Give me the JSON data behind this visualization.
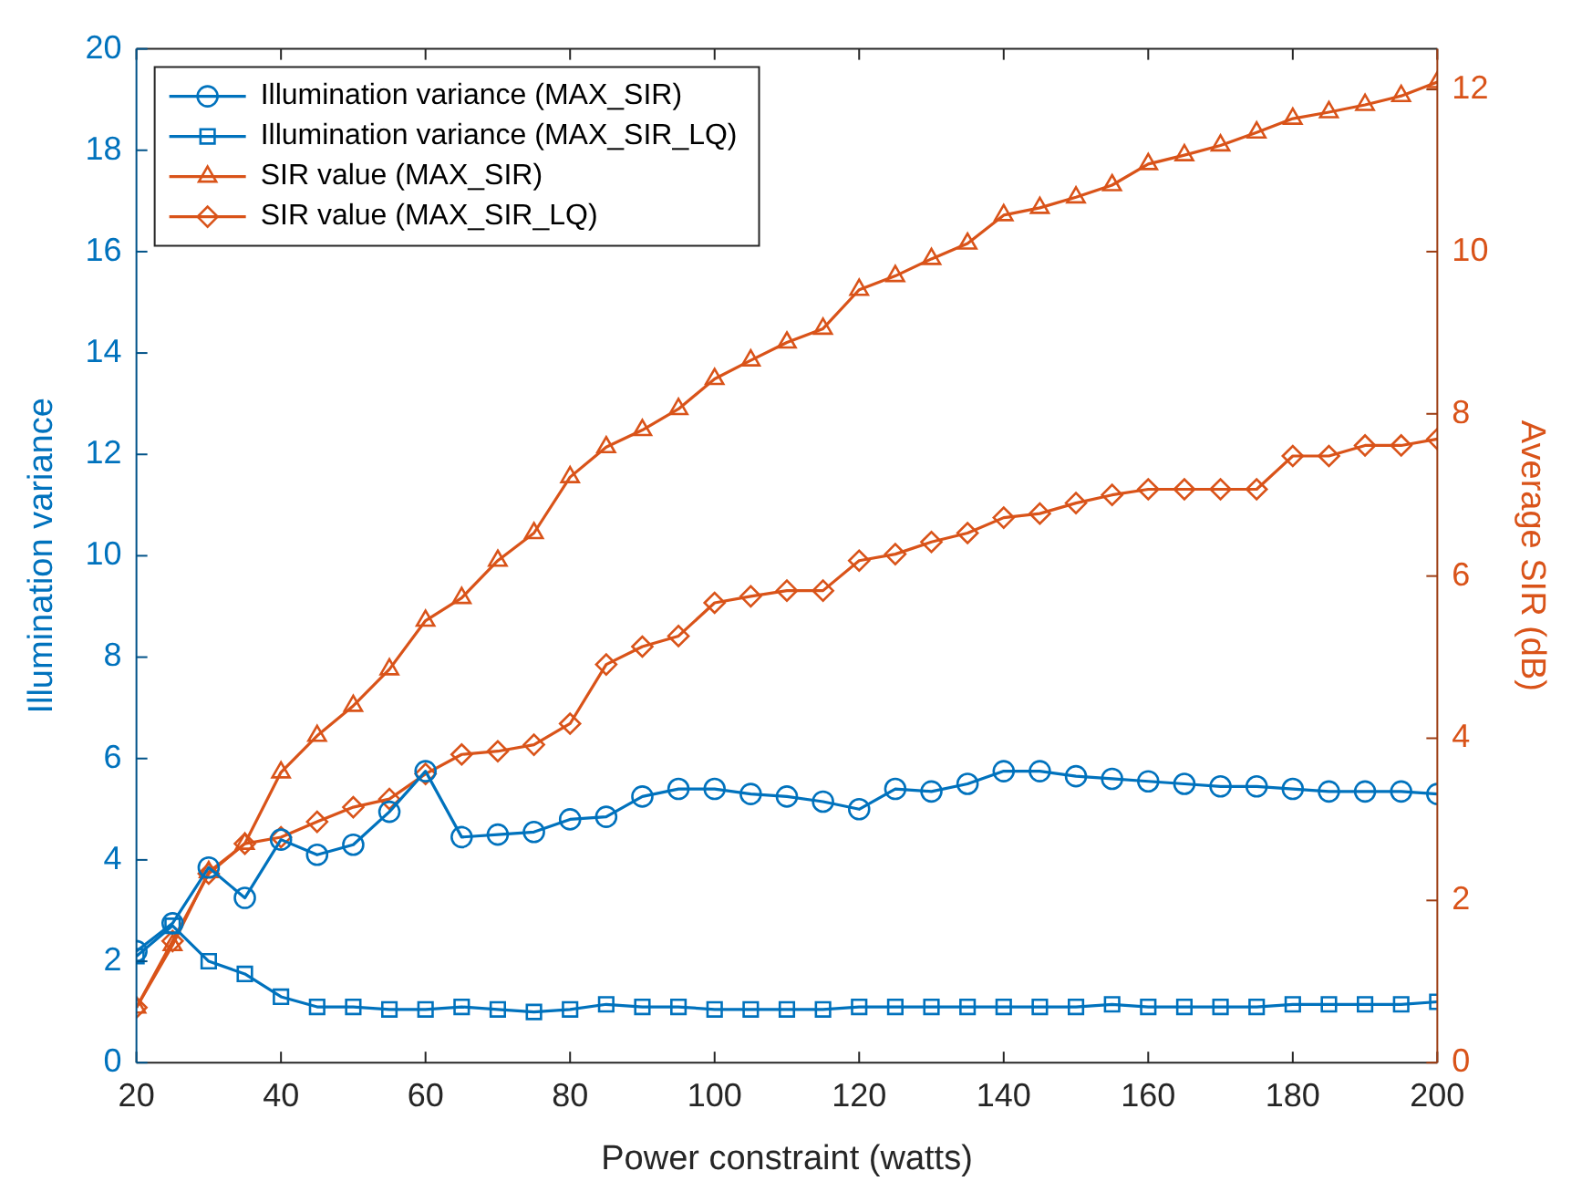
{
  "chart_data": {
    "type": "line",
    "xlabel": "Power constraint (watts)",
    "ylabel": "Illumination variance",
    "y2label": "Average SIR (dB)",
    "x": [
      20,
      25,
      30,
      35,
      40,
      45,
      50,
      55,
      60,
      65,
      70,
      75,
      80,
      85,
      90,
      95,
      100,
      105,
      110,
      115,
      120,
      125,
      130,
      135,
      140,
      145,
      150,
      155,
      160,
      165,
      170,
      175,
      180,
      185,
      190,
      195,
      200
    ],
    "series": [
      {
        "name": "Illumination variance (MAX_SIR)",
        "color": "#0072bd",
        "marker": "circle",
        "values": [
          2.2,
          2.75,
          3.85,
          3.25,
          4.4,
          4.1,
          4.3,
          4.95,
          5.75,
          4.45,
          4.5,
          4.55,
          4.8,
          4.85,
          5.25,
          5.4,
          5.4,
          5.3,
          5.25,
          5.15,
          5.0,
          5.4,
          5.35,
          5.5,
          5.75,
          5.75,
          5.65,
          5.6,
          5.55,
          5.5,
          5.45,
          5.45,
          5.4,
          5.35,
          5.35,
          5.35,
          5.3
        ]
      },
      {
        "name": "Illumination variance (MAX_SIR_LQ)",
        "color": "#0072bd",
        "marker": "square",
        "values": [
          2.1,
          2.7,
          2.0,
          1.75,
          1.3,
          1.1,
          1.1,
          1.05,
          1.05,
          1.1,
          1.05,
          1.0,
          1.05,
          1.15,
          1.1,
          1.1,
          1.05,
          1.05,
          1.05,
          1.05,
          1.1,
          1.1,
          1.1,
          1.1,
          1.1,
          1.1,
          1.1,
          1.15,
          1.1,
          1.1,
          1.1,
          1.1,
          1.15,
          1.15,
          1.15,
          1.15,
          1.2
        ]
      },
      {
        "name": "SIR value (MAX_SIR)",
        "color": "#d95319",
        "marker": "triangle",
        "axis": "y2",
        "values": [
          0.68,
          1.45,
          2.35,
          2.7,
          3.58,
          4.03,
          4.4,
          4.85,
          5.45,
          5.73,
          6.19,
          6.53,
          7.22,
          7.59,
          7.8,
          8.06,
          8.43,
          8.66,
          8.88,
          9.05,
          9.53,
          9.7,
          9.91,
          10.1,
          10.45,
          10.54,
          10.67,
          10.82,
          11.08,
          11.19,
          11.31,
          11.47,
          11.64,
          11.72,
          11.81,
          11.92,
          12.09
        ]
      },
      {
        "name": "SIR value (MAX_SIR_LQ)",
        "color": "#d95319",
        "marker": "diamond",
        "axis": "y2",
        "values": [
          0.68,
          1.5,
          2.33,
          2.7,
          2.78,
          2.97,
          3.15,
          3.25,
          3.56,
          3.8,
          3.84,
          3.92,
          4.18,
          4.91,
          5.13,
          5.26,
          5.67,
          5.75,
          5.82,
          5.82,
          6.19,
          6.27,
          6.42,
          6.53,
          6.72,
          6.77,
          6.9,
          7.0,
          7.07,
          7.07,
          7.07,
          7.07,
          7.48,
          7.48,
          7.61,
          7.61,
          7.69
        ]
      }
    ],
    "xlim": [
      20,
      200
    ],
    "xticks": [
      20,
      40,
      60,
      80,
      100,
      120,
      140,
      160,
      180,
      200
    ],
    "ylim": [
      0,
      20
    ],
    "yticks": [
      0,
      2,
      4,
      6,
      8,
      10,
      12,
      14,
      16,
      18,
      20
    ],
    "y2lim": [
      0,
      12.5
    ],
    "y2ticks": [
      0,
      2,
      4,
      6,
      8,
      10,
      12
    ],
    "grid": false,
    "legend": "top left",
    "line_style": "solid"
  }
}
